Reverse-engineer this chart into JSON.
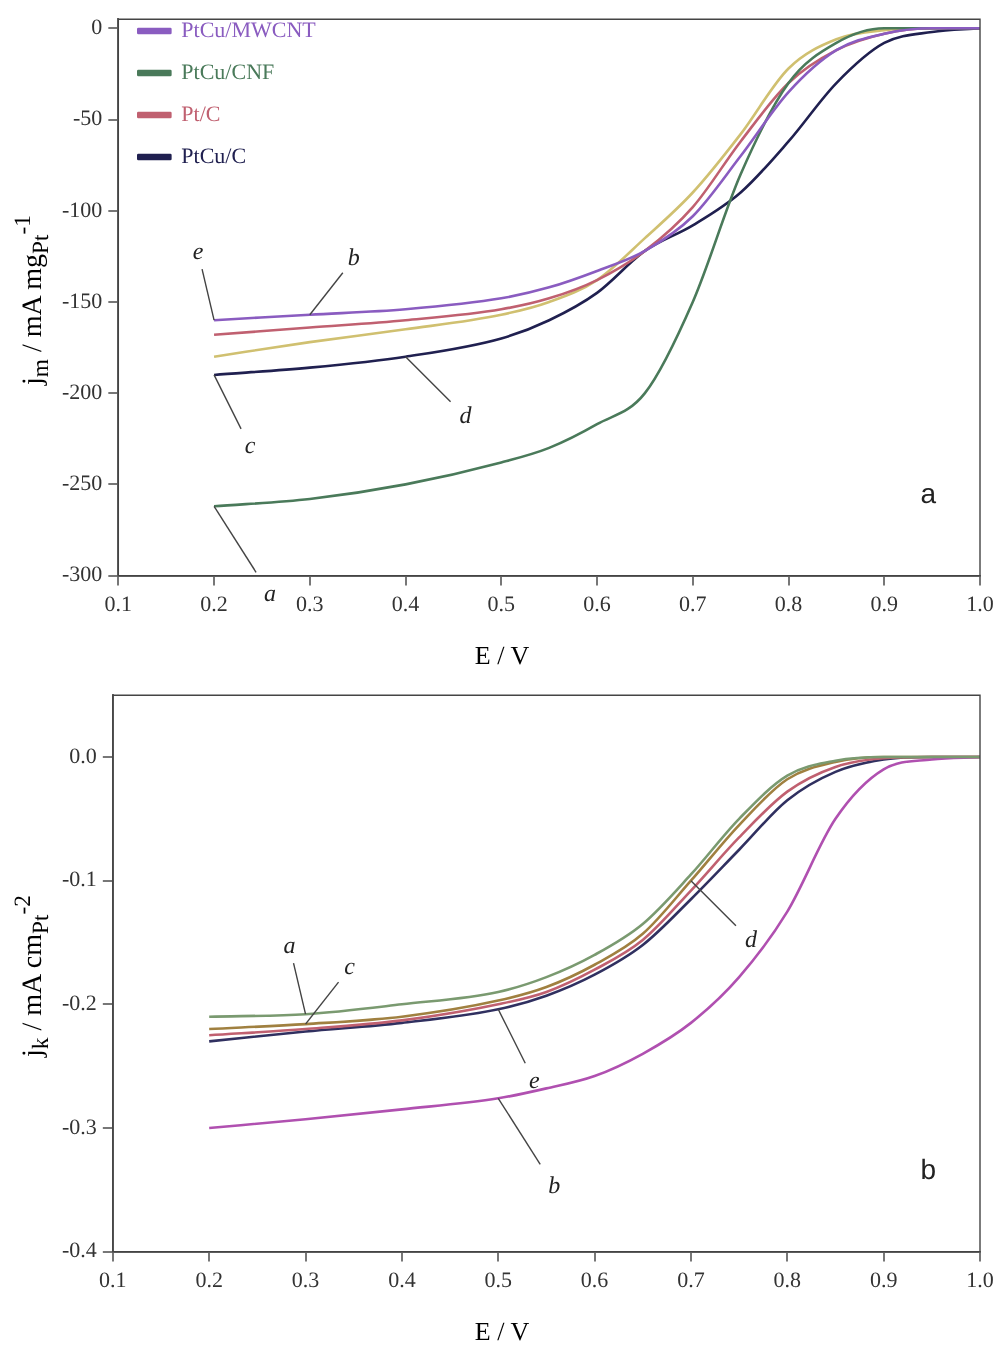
{
  "chart_data": [
    {
      "type": "line",
      "xlabel": "E / V",
      "ylabel": "j$_{m}$ / mA mg$_{Pt}$$^{-1}$",
      "xlim": [
        0.1,
        1.0
      ],
      "ylim": [
        -300,
        5
      ],
      "xticks": [
        0.1,
        0.2,
        0.3,
        0.4,
        0.5,
        0.6,
        0.7,
        0.8,
        0.9,
        {
          "value": 1,
          "label": "1.0"
        }
      ],
      "yticks": [
        0,
        -50,
        -100,
        -150,
        -200,
        -250,
        -300
      ],
      "grid": false,
      "legend": "top left",
      "marker": "none",
      "line_style": "solid",
      "x": [
        0.2,
        0.3,
        0.4,
        0.5,
        0.55,
        0.6,
        0.65,
        0.7,
        0.75,
        0.8,
        0.85,
        0.9,
        0.95,
        1.0
      ],
      "series": [
        {
          "name": "PtCu/MWCNT",
          "color": "#8a5cc0",
          "values": [
            -160,
            -157,
            -154,
            -148,
            -142,
            -133,
            -122,
            -103,
            -70,
            -35,
            -12,
            -3,
            0,
            0
          ]
        },
        {
          "name": "PtCu/CNF",
          "color": "#4a7a5a",
          "values": [
            -262,
            -258,
            -250,
            -238,
            -230,
            -217,
            -200,
            -150,
            -80,
            -30,
            -8,
            0,
            0,
            0
          ]
        },
        {
          "name": "Pt/C",
          "color": "#c06070",
          "values": [
            -168,
            -164,
            -160,
            -154,
            -148,
            -138,
            -122,
            -98,
            -62,
            -30,
            -12,
            -3,
            0,
            0
          ]
        },
        {
          "name": "PtCu/C",
          "color": "#202050",
          "values": [
            -190,
            -186,
            -180,
            -170,
            -160,
            -145,
            -122,
            -108,
            -90,
            -62,
            -30,
            -8,
            -2,
            0
          ]
        },
        {
          "color": "#d0c070",
          "values": [
            -180,
            -172,
            -165,
            -157,
            -150,
            -138,
            -115,
            -90,
            -58,
            -22,
            -6,
            -1,
            0,
            0
          ]
        }
      ],
      "annotations": [
        {
          "text": "e",
          "x": 0.2,
          "y": -160
        },
        {
          "text": "b",
          "x": 0.3,
          "y": -157
        },
        {
          "text": "c",
          "x": 0.2,
          "y": -190
        },
        {
          "text": "d",
          "x": 0.4,
          "y": -180
        },
        {
          "text": "a",
          "x": 0.2,
          "y": -262
        },
        "a"
      ]
    },
    {
      "type": "line",
      "xlabel": "E / V",
      "ylabel": "j$_{k}$ / mA cm$_{Pt}$$^{-2}$",
      "xlim": [
        0.1,
        1.0
      ],
      "ylim": [
        -0.4,
        0.05
      ],
      "xticks": [
        0.1,
        0.2,
        0.3,
        0.4,
        0.5,
        0.6,
        0.7,
        0.8,
        0.9,
        {
          "value": 1,
          "label": "1.0"
        }
      ],
      "yticks": [
        {
          "value": 0,
          "label": "0.0"
        },
        -0.1,
        -0.2,
        -0.3,
        -0.4
      ],
      "grid": false,
      "marker": "none",
      "line_style": "solid",
      "x": [
        0.2,
        0.3,
        0.4,
        0.5,
        0.55,
        0.6,
        0.65,
        0.7,
        0.75,
        0.8,
        0.85,
        0.9,
        0.95,
        1.0
      ],
      "series": [
        {
          "color": "#7a9a70",
          "values": [
            -0.21,
            -0.208,
            -0.2,
            -0.19,
            -0.178,
            -0.16,
            -0.135,
            -0.095,
            -0.05,
            -0.015,
            -0.003,
            0,
            0,
            0
          ]
        },
        {
          "color": "#b050b0",
          "values": [
            -0.3,
            -0.293,
            -0.285,
            -0.276,
            -0.268,
            -0.258,
            -0.24,
            -0.215,
            -0.178,
            -0.125,
            -0.05,
            -0.01,
            -0.002,
            0
          ]
        },
        {
          "color": "#c06070",
          "values": [
            -0.225,
            -0.22,
            -0.213,
            -0.2,
            -0.19,
            -0.172,
            -0.148,
            -0.108,
            -0.065,
            -0.028,
            -0.008,
            -0.001,
            0,
            0
          ]
        },
        {
          "color": "#a08040",
          "values": [
            -0.22,
            -0.216,
            -0.21,
            -0.197,
            -0.186,
            -0.168,
            -0.143,
            -0.1,
            -0.055,
            -0.018,
            -0.004,
            0,
            0,
            0
          ]
        },
        {
          "color": "#303060",
          "values": [
            -0.23,
            -0.222,
            -0.215,
            -0.204,
            -0.193,
            -0.176,
            -0.152,
            -0.115,
            -0.075,
            -0.035,
            -0.012,
            -0.002,
            0,
            0
          ]
        }
      ],
      "annotations": [
        {
          "text": "a",
          "x": 0.3,
          "y": -0.208
        },
        {
          "text": "c",
          "x": 0.3,
          "y": -0.216
        },
        {
          "text": "e",
          "x": 0.5,
          "y": -0.204
        },
        {
          "text": "d",
          "x": 0.7,
          "y": -0.1
        },
        {
          "text": "b",
          "x": 0.5,
          "y": -0.276
        },
        "b"
      ]
    }
  ]
}
